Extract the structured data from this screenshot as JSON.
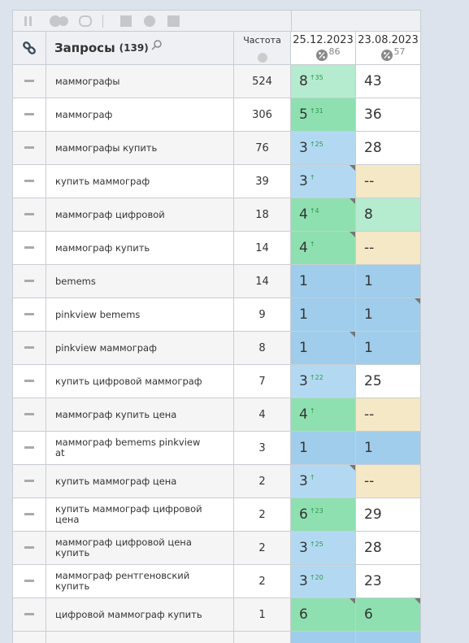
{
  "header": {
    "query_title": "Запросы",
    "query_count": "(139)",
    "frequency": "Частота",
    "dates": [
      {
        "date": "25.12.2023",
        "percent": "86"
      },
      {
        "date": "23.08.2023",
        "percent": "57"
      }
    ]
  },
  "rows": [
    {
      "query": "маммографы",
      "frequency": "524",
      "positions": [
        {
          "value": "8",
          "change": "↑35",
          "color": "#b5ebcf"
        },
        {
          "value": "43",
          "color": "#ffffff"
        }
      ]
    },
    {
      "query": "маммограф",
      "frequency": "306",
      "positions": [
        {
          "value": "5",
          "change": "↑31",
          "color": "#8fe0b0"
        },
        {
          "value": "36",
          "color": "#ffffff"
        }
      ]
    },
    {
      "query": "маммографы купить",
      "frequency": "76",
      "positions": [
        {
          "value": "3",
          "change": "↑25",
          "color": "#b3d9f2"
        },
        {
          "value": "28",
          "color": "#ffffff"
        }
      ]
    },
    {
      "query": "купить маммограф",
      "frequency": "39",
      "positions": [
        {
          "value": "3",
          "change": "↑",
          "color": "#b3d9f2",
          "flag": true
        },
        {
          "value": "--",
          "color": "#f5e8c6"
        }
      ]
    },
    {
      "query": "маммограф цифровой",
      "frequency": "18",
      "positions": [
        {
          "value": "4",
          "change": "↑4",
          "color": "#8fe0b0",
          "flag": true
        },
        {
          "value": "8",
          "color": "#b5ebcf"
        }
      ]
    },
    {
      "query": "маммограф купить",
      "frequency": "14",
      "positions": [
        {
          "value": "4",
          "change": "↑",
          "color": "#8fe0b0",
          "flag": true
        },
        {
          "value": "--",
          "color": "#f5e8c6"
        }
      ]
    },
    {
      "query": "bemems",
      "frequency": "14",
      "positions": [
        {
          "value": "1",
          "color": "#a0cdeb"
        },
        {
          "value": "1",
          "color": "#a0cdeb"
        }
      ]
    },
    {
      "query": "pinkview bemems",
      "frequency": "9",
      "positions": [
        {
          "value": "1",
          "color": "#a0cdeb"
        },
        {
          "value": "1",
          "color": "#a0cdeb",
          "flag": true
        }
      ]
    },
    {
      "query": "pinkview маммограф",
      "frequency": "8",
      "positions": [
        {
          "value": "1",
          "color": "#a0cdeb",
          "flag": true
        },
        {
          "value": "1",
          "color": "#a0cdeb"
        }
      ]
    },
    {
      "query": "купить цифровой маммограф",
      "frequency": "7",
      "positions": [
        {
          "value": "3",
          "change": "↑22",
          "color": "#b3d9f2"
        },
        {
          "value": "25",
          "color": "#ffffff"
        }
      ]
    },
    {
      "query": "маммограф купить цена",
      "frequency": "4",
      "positions": [
        {
          "value": "4",
          "change": "↑",
          "color": "#8fe0b0"
        },
        {
          "value": "--",
          "color": "#f5e8c6"
        }
      ]
    },
    {
      "query": "маммограф bemems pinkview at",
      "frequency": "3",
      "positions": [
        {
          "value": "1",
          "color": "#a0cdeb"
        },
        {
          "value": "1",
          "color": "#a0cdeb"
        }
      ]
    },
    {
      "query": "купить маммограф цена",
      "frequency": "2",
      "positions": [
        {
          "value": "3",
          "change": "↑",
          "color": "#b3d9f2",
          "flag": true
        },
        {
          "value": "--",
          "color": "#f5e8c6"
        }
      ]
    },
    {
      "query": "купить маммограф цифровой цена",
      "frequency": "2",
      "positions": [
        {
          "value": "6",
          "change": "↑23",
          "color": "#8fe0b0"
        },
        {
          "value": "29",
          "color": "#ffffff"
        }
      ]
    },
    {
      "query": "маммограф цифровой цена купить",
      "frequency": "2",
      "positions": [
        {
          "value": "3",
          "change": "↑25",
          "color": "#b3d9f2"
        },
        {
          "value": "28",
          "color": "#ffffff"
        }
      ]
    },
    {
      "query": "маммограф рентгеновский купить",
      "frequency": "2",
      "positions": [
        {
          "value": "3",
          "change": "↑20",
          "color": "#b3d9f2"
        },
        {
          "value": "23",
          "color": "#ffffff"
        }
      ]
    },
    {
      "query": "цифровой маммограф купить",
      "frequency": "1",
      "positions": [
        {
          "value": "6",
          "color": "#8fe0b0",
          "flag": true
        },
        {
          "value": "6",
          "color": "#8fe0b0",
          "flag": true
        }
      ]
    }
  ]
}
